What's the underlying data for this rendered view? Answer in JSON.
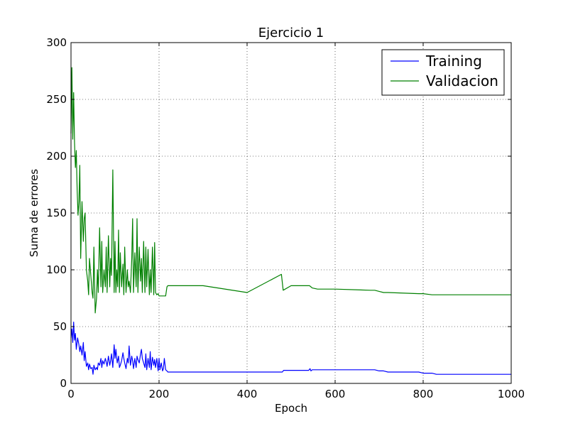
{
  "chart_data": {
    "type": "line",
    "title": "Ejercicio 1",
    "xlabel": "Epoch",
    "ylabel": "Suma de errores",
    "xlim": [
      0,
      1000
    ],
    "ylim": [
      0,
      300
    ],
    "xticks": [
      0,
      200,
      400,
      600,
      800,
      1000
    ],
    "yticks": [
      0,
      50,
      100,
      150,
      200,
      250,
      300
    ],
    "grid": true,
    "legend_position": "top-right",
    "series": [
      {
        "name": "Training",
        "color": "#0000ff",
        "x": [
          0,
          2,
          4,
          6,
          8,
          10,
          12,
          15,
          18,
          20,
          22,
          25,
          28,
          30,
          32,
          35,
          38,
          40,
          42,
          45,
          48,
          50,
          52,
          55,
          58,
          60,
          62,
          65,
          68,
          70,
          72,
          75,
          78,
          80,
          82,
          85,
          88,
          90,
          92,
          95,
          98,
          100,
          102,
          105,
          108,
          110,
          112,
          115,
          118,
          120,
          122,
          125,
          128,
          130,
          132,
          135,
          138,
          140,
          142,
          145,
          148,
          150,
          152,
          155,
          158,
          160,
          162,
          165,
          168,
          170,
          172,
          175,
          178,
          180,
          182,
          185,
          188,
          190,
          192,
          195,
          198,
          200,
          202,
          205,
          208,
          210,
          212,
          215,
          218,
          220,
          300,
          400,
          480,
          483,
          540,
          543,
          545,
          548,
          560,
          690,
          700,
          710,
          720,
          790,
          800,
          820,
          830,
          1000
        ],
        "y": [
          40,
          48,
          36,
          54,
          38,
          44,
          30,
          40,
          34,
          28,
          33,
          25,
          36,
          20,
          28,
          15,
          18,
          12,
          17,
          13,
          14,
          8,
          16,
          12,
          14,
          12,
          18,
          16,
          22,
          14,
          20,
          17,
          22,
          19,
          15,
          24,
          16,
          20,
          26,
          14,
          34,
          22,
          30,
          18,
          24,
          14,
          16,
          20,
          27,
          22,
          18,
          13,
          22,
          18,
          33,
          16,
          24,
          20,
          13,
          22,
          14,
          24,
          21,
          18,
          26,
          30,
          22,
          18,
          14,
          26,
          12,
          22,
          14,
          28,
          12,
          23,
          16,
          21,
          14,
          22,
          11,
          22,
          12,
          18,
          11,
          13,
          22,
          12,
          11,
          10,
          10,
          10,
          10,
          11.5,
          11.5,
          13,
          11,
          12,
          12,
          12,
          11,
          11,
          10,
          10,
          9,
          9,
          8,
          8
        ]
      },
      {
        "name": "Validacion",
        "color": "#008000",
        "x": [
          0,
          2,
          4,
          6,
          8,
          10,
          12,
          14,
          16,
          18,
          20,
          22,
          25,
          28,
          30,
          32,
          35,
          38,
          40,
          42,
          45,
          48,
          50,
          52,
          55,
          58,
          60,
          62,
          65,
          68,
          70,
          72,
          75,
          78,
          80,
          82,
          85,
          88,
          90,
          92,
          95,
          98,
          100,
          102,
          104,
          106,
          108,
          110,
          112,
          115,
          118,
          120,
          122,
          125,
          128,
          130,
          132,
          135,
          138,
          140,
          142,
          145,
          148,
          150,
          152,
          155,
          158,
          160,
          162,
          165,
          168,
          170,
          172,
          175,
          178,
          180,
          182,
          185,
          188,
          190,
          192,
          195,
          198,
          200,
          202,
          205,
          208,
          210,
          212,
          215,
          218,
          220,
          225,
          300,
          400,
          478,
          482,
          500,
          535,
          537,
          540,
          542,
          545,
          548,
          560,
          600,
          680,
          690,
          700,
          710,
          720,
          790,
          800,
          820,
          830,
          990,
          1000
        ],
        "y": [
          220,
          278,
          215,
          256,
          212,
          190,
          205,
          170,
          148,
          160,
          192,
          110,
          160,
          125,
          145,
          150,
          100,
          90,
          78,
          110,
          95,
          80,
          75,
          120,
          62,
          75,
          100,
          80,
          137,
          85,
          125,
          80,
          100,
          85,
          120,
          80,
          130,
          85,
          110,
          95,
          188,
          80,
          125,
          80,
          100,
          85,
          135,
          80,
          115,
          85,
          105,
          78,
          120,
          80,
          100,
          85,
          90,
          80,
          110,
          145,
          80,
          115,
          85,
          145,
          80,
          120,
          90,
          110,
          80,
          125,
          80,
          120,
          85,
          118,
          78,
          100,
          80,
          120,
          78,
          124,
          80,
          78,
          79,
          77,
          77,
          77,
          77,
          77,
          77,
          77,
          85,
          86,
          86,
          86,
          80,
          96,
          82,
          86,
          86,
          86,
          86,
          86,
          85,
          84,
          83,
          83,
          82,
          82,
          81,
          80,
          80,
          79,
          79,
          78,
          78,
          78,
          78
        ]
      }
    ]
  }
}
